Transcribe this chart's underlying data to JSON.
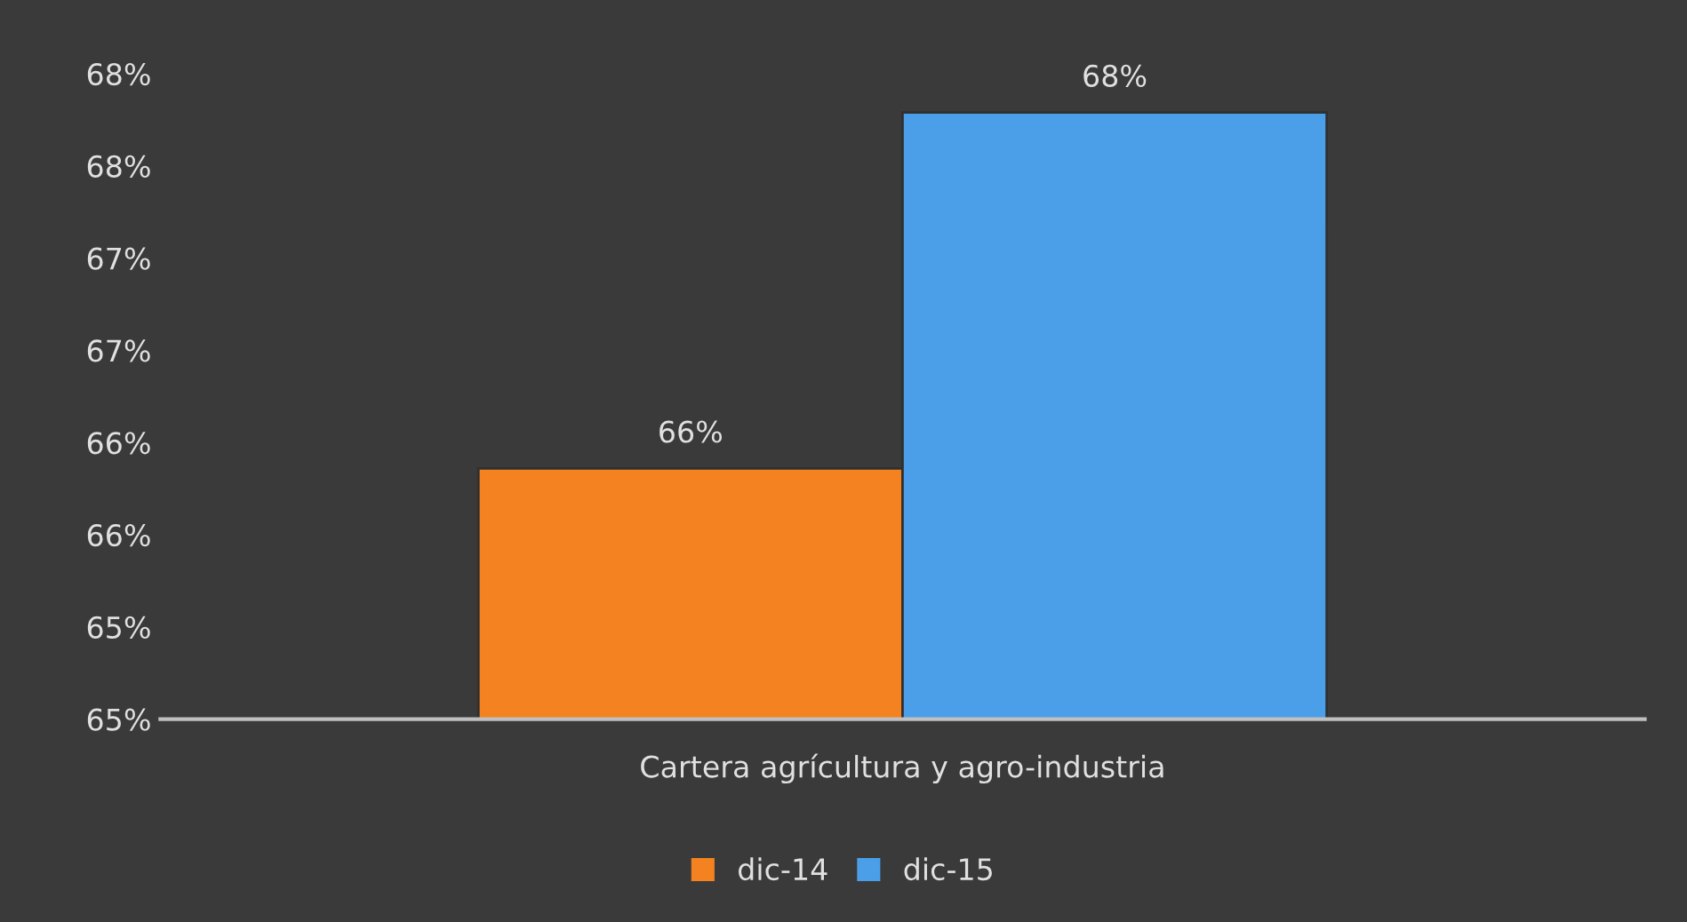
{
  "chart_data": {
    "type": "bar",
    "categories": [
      "Cartera agrícultura y agro-industria"
    ],
    "series": [
      {
        "name": "dic-14",
        "color": "#f58220",
        "values": [
          65.86
        ],
        "value_labels": [
          "66%"
        ]
      },
      {
        "name": "dic-15",
        "color": "#4a9fe8",
        "values": [
          67.79
        ],
        "value_labels": [
          "68%"
        ]
      }
    ],
    "ylim": [
      64.5,
      68.0
    ],
    "yticks": [
      {
        "value": 64.5,
        "label": "65%"
      },
      {
        "value": 65.0,
        "label": "65%"
      },
      {
        "value": 65.5,
        "label": "66%"
      },
      {
        "value": 66.0,
        "label": "66%"
      },
      {
        "value": 66.5,
        "label": "67%"
      },
      {
        "value": 67.0,
        "label": "67%"
      },
      {
        "value": 67.5,
        "label": "68%"
      },
      {
        "value": 68.0,
        "label": "68%"
      }
    ],
    "grid": false,
    "legend": "bottom"
  }
}
